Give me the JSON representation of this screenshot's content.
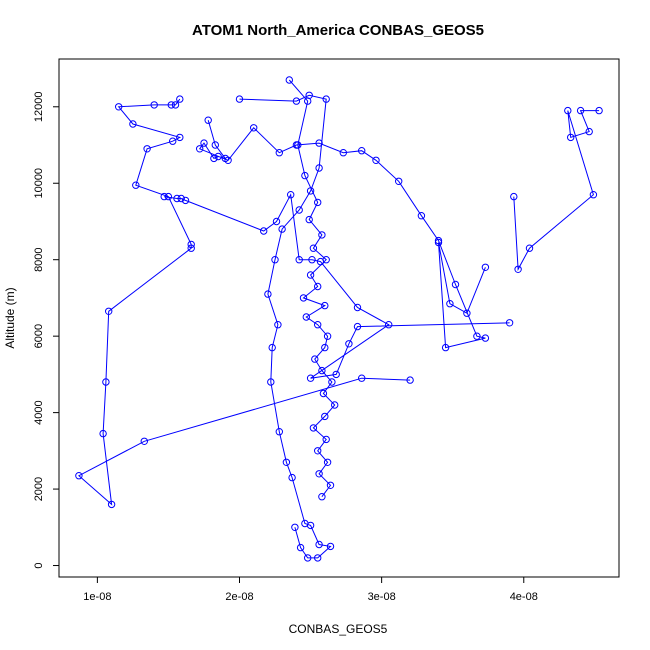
{
  "chart_data": {
    "type": "line",
    "title": "ATOM1 North_America CONBAS_GEOS5",
    "xlabel": "CONBAS_GEOS5",
    "ylabel": "Altitude (m)",
    "xlim": [
      7.3e-09,
      4.67e-08
    ],
    "ylim": [
      -300,
      13250
    ],
    "x_ticks": [
      1e-08,
      2e-08,
      3e-08,
      4e-08
    ],
    "x_tick_labels": [
      "1e-08",
      "2e-08",
      "3e-08",
      "4e-08"
    ],
    "y_ticks": [
      0,
      2000,
      4000,
      6000,
      8000,
      10000,
      12000
    ],
    "y_tick_labels": [
      "0",
      "2000",
      "4000",
      "6000",
      "8000",
      "10000",
      "12000"
    ],
    "grid": false,
    "legend": "none",
    "color": "#0000ff",
    "series": [
      {
        "x": [
          2.35e-08,
          2.48e-08,
          2.41e-08,
          2.46e-08,
          2.55e-08,
          2.49e-08,
          2.58e-08,
          2.52e-08,
          2.61e-08,
          2.5e-08,
          2.55e-08,
          2.45e-08,
          2.6e-08,
          2.47e-08,
          2.55e-08,
          2.62e-08,
          2.6e-08,
          2.53e-08,
          2.58e-08,
          2.65e-08,
          2.59e-08,
          2.67e-08,
          2.6e-08,
          2.52e-08,
          2.61e-08,
          2.55e-08,
          2.62e-08,
          2.56e-08,
          2.64e-08,
          2.58e-08
        ],
        "y": [
          12700,
          12150,
          11000,
          10200,
          9500,
          9050,
          8650,
          8300,
          8000,
          7600,
          7300,
          7000,
          6800,
          6500,
          6300,
          6000,
          5700,
          5400,
          5100,
          4800,
          4500,
          4200,
          3900,
          3600,
          3300,
          3000,
          2700,
          2400,
          2100,
          1800
        ]
      },
      {
        "x": [
          4.53e-08,
          4.4e-08,
          4.46e-08,
          4.33e-08,
          4.31e-08,
          4.49e-08,
          4.04e-08,
          3.96e-08,
          3.93e-08
        ],
        "y": [
          11900,
          11900,
          11350,
          11200,
          11900,
          9700,
          8300,
          7750,
          9650
        ]
      },
      {
        "x": [
          1.58e-08,
          1.55e-08,
          1.52e-08,
          1.4e-08,
          1.15e-08,
          1.25e-08,
          1.58e-08,
          1.53e-08,
          1.35e-08,
          1.27e-08,
          1.5e-08,
          1.66e-08,
          1.66e-08,
          1.08e-08,
          1.06e-08,
          1.04e-08,
          1.1e-08,
          8.7e-09,
          1.33e-08,
          2.86e-08,
          3.2e-08
        ],
        "y": [
          12200,
          12050,
          12050,
          12050,
          12000,
          11550,
          11200,
          11100,
          10900,
          9950,
          9650,
          8400,
          8300,
          6650,
          4800,
          3450,
          1600,
          2350,
          3250,
          4900,
          4850
        ]
      },
      {
        "x": [
          1.78e-08,
          1.83e-08,
          1.9e-08,
          1.85e-08,
          1.82e-08,
          1.75e-08,
          1.72e-08,
          1.92e-08,
          2.1e-08,
          2.28e-08,
          2.4e-08,
          2.56e-08,
          2.73e-08,
          2.86e-08,
          2.96e-08,
          3.12e-08,
          3.28e-08,
          3.4e-08,
          3.52e-08,
          3.67e-08,
          3.73e-08,
          3.45e-08,
          3.4e-08,
          3.48e-08,
          3.6e-08,
          3.73e-08
        ],
        "y": [
          11650,
          11000,
          10650,
          10700,
          10650,
          11050,
          10900,
          10600,
          11450,
          10800,
          11000,
          11050,
          10800,
          10850,
          10600,
          10050,
          9150,
          8500,
          7350,
          6000,
          5950,
          5700,
          8450,
          6850,
          6600,
          7800
        ]
      },
      {
        "x": [
          1.47e-08,
          1.56e-08,
          1.59e-08,
          1.62e-08,
          2.17e-08,
          2.26e-08,
          2.36e-08,
          2.42e-08,
          2.51e-08,
          2.57e-08,
          2.83e-08,
          3.05e-08,
          2.5e-08,
          2.68e-08,
          2.77e-08,
          2.83e-08,
          3.9e-08
        ],
        "y": [
          9650,
          9600,
          9600,
          9550,
          8750,
          9000,
          9700,
          8000,
          8000,
          7950,
          6750,
          6300,
          4900,
          5000,
          5800,
          6250,
          6350
        ]
      },
      {
        "x": [
          2e-08,
          2.4e-08,
          2.49e-08,
          2.61e-08,
          2.56e-08,
          2.5e-08,
          2.42e-08,
          2.3e-08,
          2.25e-08,
          2.2e-08,
          2.27e-08,
          2.23e-08,
          2.22e-08,
          2.28e-08,
          2.33e-08,
          2.37e-08,
          2.46e-08,
          2.5e-08,
          2.56e-08,
          2.64e-08,
          2.55e-08,
          2.48e-08,
          2.43e-08,
          2.39e-08
        ],
        "y": [
          12200,
          12150,
          12300,
          12200,
          10400,
          9800,
          9300,
          8800,
          8000,
          7100,
          6300,
          5700,
          4800,
          3500,
          2700,
          2300,
          1100,
          1050,
          550,
          500,
          200,
          200,
          470,
          1000
        ]
      }
    ]
  }
}
